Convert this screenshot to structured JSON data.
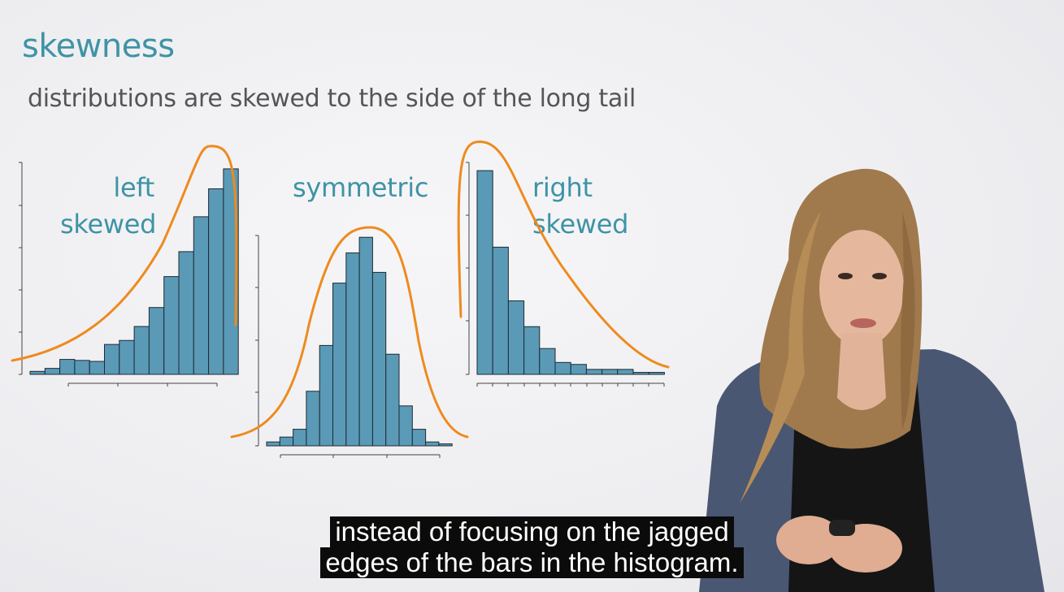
{
  "slide": {
    "title": "skewness",
    "subtitle": "distributions are skewed to the side of the long tail"
  },
  "colors": {
    "title": "#3f93a6",
    "bar_fill": "#5a9ab6",
    "bar_stroke": "#1f2a33",
    "curve": "#ef8a1e",
    "axis": "#444444"
  },
  "chart_data": [
    {
      "type": "bar",
      "label_lines": [
        "left",
        "skewed"
      ],
      "title": "",
      "xlabel": "",
      "ylabel": "",
      "values": [
        0.3,
        0.6,
        1.5,
        1.4,
        1.3,
        3.0,
        3.4,
        4.8,
        6.7,
        9.8,
        12.3,
        15.8,
        18.6,
        20.6
      ],
      "ylim": [
        0,
        21
      ]
    },
    {
      "type": "bar",
      "label_lines": [
        "symmetric"
      ],
      "title": "",
      "xlabel": "",
      "ylabel": "",
      "values": [
        0.4,
        0.9,
        1.7,
        5.6,
        10.3,
        16.7,
        19.8,
        21.4,
        17.8,
        9.4,
        4.1,
        1.7,
        0.4,
        0.2
      ],
      "ylim": [
        0,
        21.5
      ]
    },
    {
      "type": "bar",
      "label_lines": [
        "right",
        "skewed"
      ],
      "title": "",
      "xlabel": "",
      "ylabel": "",
      "values": [
        20.5,
        12.8,
        7.4,
        4.8,
        2.6,
        1.2,
        1.0,
        0.5,
        0.5,
        0.5,
        0.2,
        0.2
      ],
      "ylim": [
        0,
        21
      ]
    }
  ],
  "presenter": {
    "description_icon": "presenter-photo"
  },
  "captions": [
    "instead of focusing on the jagged",
    "edges of the bars in the histogram."
  ]
}
